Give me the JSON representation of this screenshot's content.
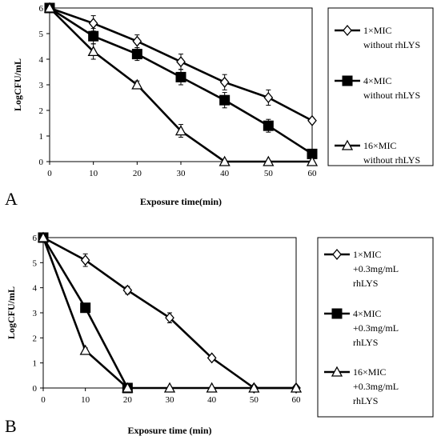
{
  "chart_data": [
    {
      "panel": "A",
      "type": "line",
      "xlabel": "Exposure time(min)",
      "ylabel": "LogCFU/mL",
      "xlim": [
        0,
        60
      ],
      "ylim": [
        0,
        6
      ],
      "xticks": [
        0,
        10,
        20,
        30,
        40,
        50,
        60
      ],
      "yticks": [
        0,
        1,
        2,
        3,
        4,
        5,
        6
      ],
      "legend": "right",
      "series": [
        {
          "name_lines": [
            "1×MIC",
            "without rhLYS"
          ],
          "marker": "diamond",
          "color": "#000000",
          "x": [
            0,
            10,
            20,
            30,
            40,
            50,
            60
          ],
          "y": [
            6.0,
            5.4,
            4.7,
            3.9,
            3.1,
            2.5,
            1.6
          ],
          "err": [
            0.05,
            0.3,
            0.25,
            0.3,
            0.3,
            0.3,
            0.1
          ]
        },
        {
          "name_lines": [
            "4×MIC",
            "without rhLYS"
          ],
          "marker": "square",
          "color": "#000000",
          "x": [
            0,
            10,
            20,
            30,
            40,
            50,
            60
          ],
          "y": [
            6.0,
            4.9,
            4.2,
            3.3,
            2.4,
            1.4,
            0.3
          ],
          "err": [
            0.05,
            0.3,
            0.25,
            0.3,
            0.3,
            0.25,
            0.1
          ]
        },
        {
          "name_lines": [
            "16×MIC",
            "without rhLYS"
          ],
          "marker": "triangle",
          "color": "#000000",
          "x": [
            0,
            10,
            20,
            30,
            40,
            50,
            60
          ],
          "y": [
            6.0,
            4.3,
            3.0,
            1.2,
            0.0,
            0.0,
            0.0
          ],
          "err": [
            0.05,
            0.3,
            0.15,
            0.25,
            0,
            0,
            0
          ]
        }
      ]
    },
    {
      "panel": "B",
      "type": "line",
      "xlabel": "Exposure time (min)",
      "ylabel": "LogCFU/mL",
      "xlim": [
        0,
        60
      ],
      "ylim": [
        0,
        6
      ],
      "xticks": [
        0,
        10,
        20,
        30,
        40,
        50,
        60
      ],
      "yticks": [
        0,
        1,
        2,
        3,
        4,
        5,
        6
      ],
      "legend": "right",
      "series": [
        {
          "name_lines": [
            "1×MIC",
            "+0.3mg/mL",
            "rhLYS"
          ],
          "marker": "diamond",
          "color": "#000000",
          "x": [
            0,
            10,
            20,
            30,
            40,
            50,
            60
          ],
          "y": [
            6.0,
            5.1,
            3.9,
            2.8,
            1.2,
            0.0,
            0.0
          ],
          "err": [
            0.05,
            0.25,
            0.15,
            0.2,
            0.1,
            0,
            0
          ]
        },
        {
          "name_lines": [
            "4×MIC",
            "+0.3mg/mL",
            "rhLYS"
          ],
          "marker": "square",
          "color": "#000000",
          "x": [
            0,
            10,
            20
          ],
          "y": [
            6.0,
            3.2,
            0.0
          ],
          "err": [
            0.05,
            0.1,
            0
          ]
        },
        {
          "name_lines": [
            "16×MIC",
            "+0.3mg/mL",
            "rhLYS"
          ],
          "marker": "triangle",
          "color": "#000000",
          "x": [
            0,
            10,
            20,
            30,
            40,
            50,
            60
          ],
          "y": [
            6.0,
            1.5,
            0.0,
            0.0,
            0.0,
            0.0,
            0.0
          ],
          "err": [
            0.05,
            0.1,
            0,
            0,
            0,
            0,
            0
          ]
        }
      ]
    }
  ]
}
